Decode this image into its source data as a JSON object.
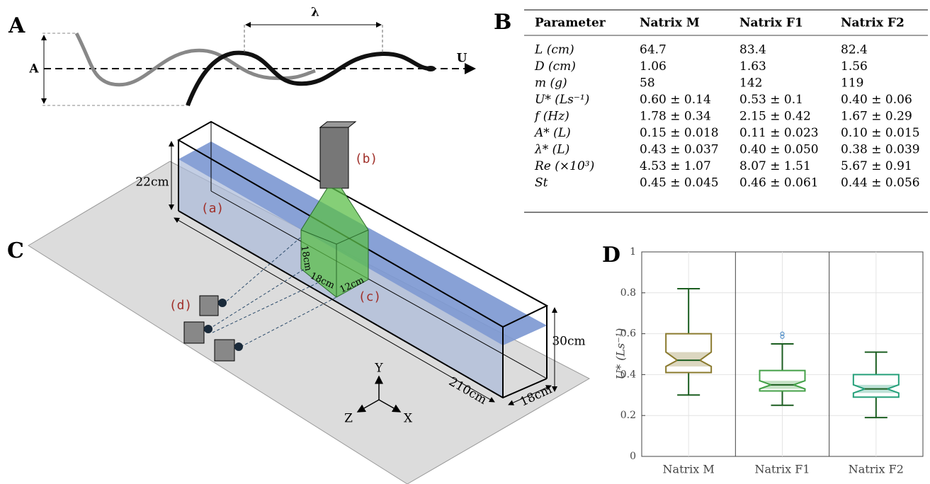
{
  "panel_a": {
    "label": "A",
    "amplitude": "A",
    "wavelength": "λ",
    "velocity": "U"
  },
  "table": {
    "label": "B",
    "header": [
      "Parameter",
      "Natrix M",
      "Natrix F1",
      "Natrix F2"
    ],
    "rows": [
      [
        "L (cm)",
        "64.7",
        "83.4",
        "82.4"
      ],
      [
        "D (cm)",
        "1.06",
        "1.63",
        "1.56"
      ],
      [
        "m (g)",
        "58",
        "142",
        "119"
      ],
      [
        "U* (Ls⁻¹)",
        "0.60 ± 0.14",
        "0.53 ± 0.1",
        "0.40 ± 0.06"
      ],
      [
        "f (Hz)",
        "1.78 ± 0.34",
        "2.15 ± 0.42",
        "1.67 ± 0.29"
      ],
      [
        "A* (L)",
        "0.15 ± 0.018",
        "0.11 ± 0.023",
        "0.10 ± 0.015"
      ],
      [
        "λ* (L)",
        "0.43 ± 0.037",
        "0.40 ± 0.050",
        "0.38 ± 0.039"
      ],
      [
        "Re (×10³)",
        "4.53 ± 1.07",
        "8.07 ± 1.51",
        "5.67 ± 0.91"
      ],
      [
        "St",
        "0.45 ± 0.045",
        "0.46 ± 0.061",
        "0.44 ± 0.056"
      ]
    ]
  },
  "panel_c": {
    "label": "C",
    "depth": "22cm",
    "tank": "(a)",
    "camera": "(b)",
    "volume": "(c)",
    "cameras": "(d)",
    "vol_h": "18cm",
    "vol_w": "18cm",
    "vol_d": "12cm",
    "height": "30cm",
    "length": "210cm",
    "width": "18cm",
    "axis_y": "Y",
    "axis_z": "Z",
    "axis_x": "X"
  },
  "chart_data": {
    "type": "box",
    "title": "D",
    "ylabel": "U* (Ls⁻¹)",
    "categories": [
      "Natrix M",
      "Natrix F1",
      "Natrix F2"
    ],
    "ylim": [
      0,
      1
    ],
    "yticks": [
      0,
      0.2,
      0.4,
      0.6,
      0.8,
      1
    ],
    "grid": true,
    "whisker_color": "#1b5e20",
    "boxes": [
      {
        "color": "#8a7a2e",
        "q1": 0.41,
        "median": 0.47,
        "q3": 0.6,
        "notch": [
          0.44,
          0.51
        ],
        "whisker_low": 0.3,
        "whisker_high": 0.82,
        "outliers": []
      },
      {
        "color": "#43a047",
        "q1": 0.32,
        "median": 0.35,
        "q3": 0.42,
        "notch": [
          0.33,
          0.37
        ],
        "whisker_low": 0.25,
        "whisker_high": 0.55,
        "outliers": [
          0.585,
          0.6
        ]
      },
      {
        "color": "#26a07a",
        "q1": 0.29,
        "median": 0.33,
        "q3": 0.4,
        "notch": [
          0.31,
          0.35
        ],
        "whisker_low": 0.19,
        "whisker_high": 0.51,
        "outliers": []
      }
    ]
  }
}
